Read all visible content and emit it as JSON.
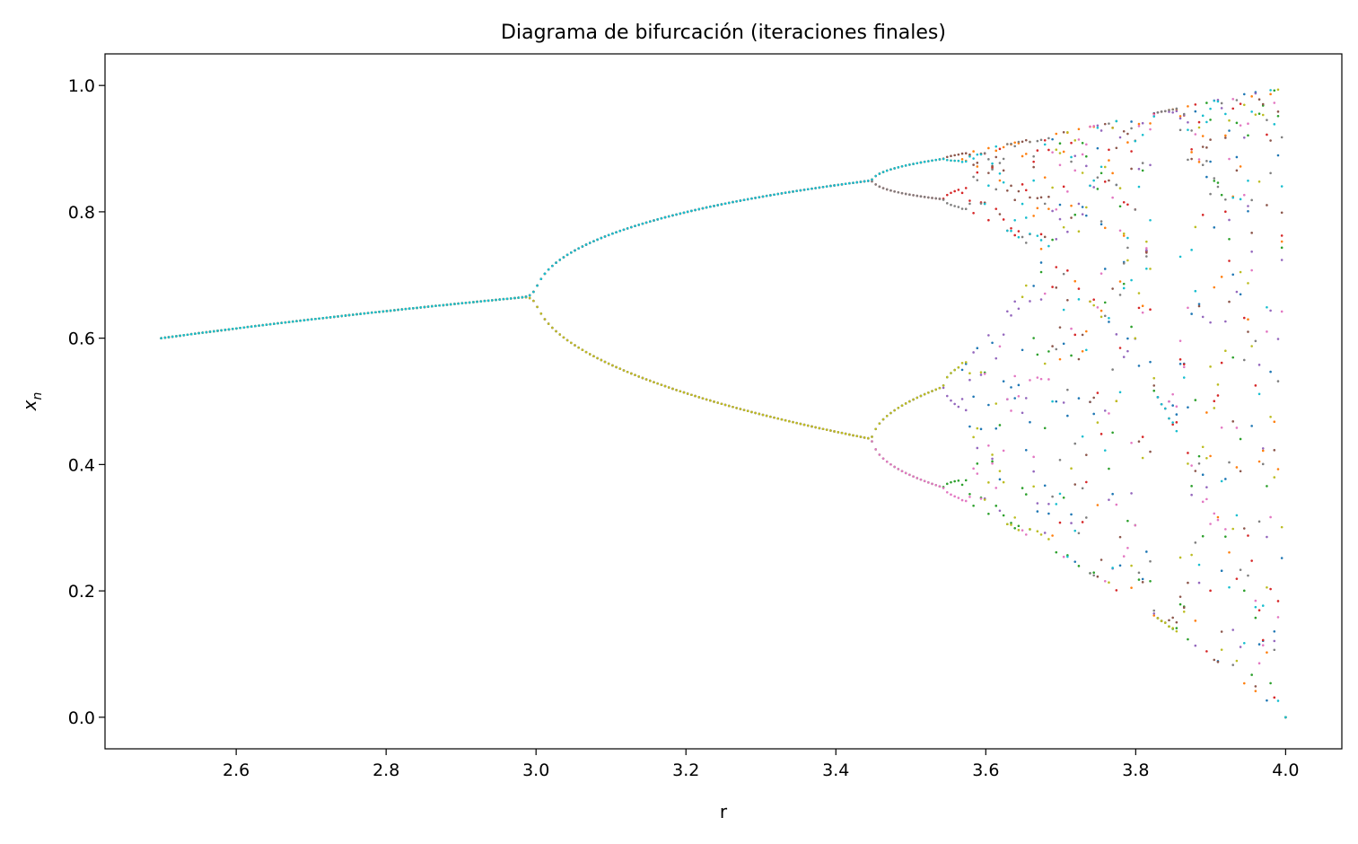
{
  "chart_data": {
    "type": "scatter",
    "title": "Diagrama de bifurcación (iteraciones finales)",
    "xlabel": "r",
    "ylabel": "x",
    "ylabel_subscript": "n",
    "xlim": [
      2.425,
      4.075
    ],
    "ylim": [
      -0.05,
      1.05
    ],
    "xticks": [
      "2.6",
      "2.8",
      "3.0",
      "3.2",
      "3.4",
      "3.6",
      "3.8",
      "4.0"
    ],
    "yticks": [
      "0.0",
      "0.2",
      "0.4",
      "0.6",
      "0.8",
      "1.0"
    ],
    "grid": false,
    "legend": "none",
    "r_range": [
      2.5,
      4.0
    ],
    "r_samples": 300,
    "iterations_shown": 10,
    "series": [
      {
        "color": "#1f77b4"
      },
      {
        "color": "#ff7f0e"
      },
      {
        "color": "#2ca02c"
      },
      {
        "color": "#d62728"
      },
      {
        "color": "#9467bd"
      },
      {
        "color": "#8c564b"
      },
      {
        "color": "#e377c2"
      },
      {
        "color": "#7f7f7f"
      },
      {
        "color": "#bcbd22"
      },
      {
        "color": "#17becf"
      }
    ]
  }
}
